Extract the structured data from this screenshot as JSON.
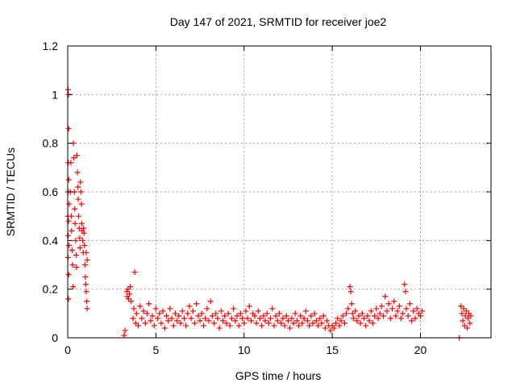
{
  "chart_data": {
    "type": "scatter",
    "title": "Day 147 of 2021, SRMTID for receiver joe2",
    "xlabel": "GPS time / hours",
    "ylabel": "SRMTID / TECUs",
    "xlim": [
      0,
      24
    ],
    "ylim": [
      0,
      1.2
    ],
    "x_ticks": [
      0,
      5,
      10,
      15,
      20
    ],
    "x_tick_labels": [
      "0",
      "5",
      "10",
      "15",
      "20"
    ],
    "y_ticks": [
      0,
      0.2,
      0.4,
      0.6,
      0.8,
      1,
      1.2
    ],
    "y_tick_labels": [
      "0",
      "0.2",
      "0.4",
      "0.6",
      "0.8",
      "1",
      "1.2"
    ],
    "grid": true,
    "marker": "+",
    "color": "#ff0000",
    "series": [
      {
        "name": "SRMTID",
        "points": [
          [
            0.02,
            1.02
          ],
          [
            0.04,
            1.0
          ],
          [
            0.05,
            0.86
          ],
          [
            0.03,
            0.72
          ],
          [
            0.06,
            0.65
          ],
          [
            0.02,
            0.6
          ],
          [
            0.08,
            0.55
          ],
          [
            0.01,
            0.5
          ],
          [
            0.05,
            0.48
          ],
          [
            0.03,
            0.42
          ],
          [
            0.07,
            0.38
          ],
          [
            0.02,
            0.33
          ],
          [
            0.06,
            0.26
          ],
          [
            0.04,
            0.16
          ],
          [
            0.15,
            0.6
          ],
          [
            0.18,
            0.72
          ],
          [
            0.2,
            0.5
          ],
          [
            0.22,
            0.44
          ],
          [
            0.25,
            0.36
          ],
          [
            0.28,
            0.3
          ],
          [
            0.3,
            0.21
          ],
          [
            0.32,
            0.8
          ],
          [
            0.35,
            0.74
          ],
          [
            0.38,
            0.6
          ],
          [
            0.4,
            0.53
          ],
          [
            0.42,
            0.47
          ],
          [
            0.45,
            0.4
          ],
          [
            0.48,
            0.34
          ],
          [
            0.5,
            0.29
          ],
          [
            0.52,
            0.75
          ],
          [
            0.55,
            0.68
          ],
          [
            0.58,
            0.62
          ],
          [
            0.6,
            0.57
          ],
          [
            0.62,
            0.5
          ],
          [
            0.65,
            0.45
          ],
          [
            0.68,
            0.41
          ],
          [
            0.7,
            0.37
          ],
          [
            0.72,
            0.64
          ],
          [
            0.75,
            0.6
          ],
          [
            0.78,
            0.55
          ],
          [
            0.8,
            0.47
          ],
          [
            0.82,
            0.44
          ],
          [
            0.85,
            0.4
          ],
          [
            0.88,
            0.35
          ],
          [
            0.9,
            0.45
          ],
          [
            0.92,
            0.43
          ],
          [
            0.95,
            0.38
          ],
          [
            0.98,
            0.3
          ],
          [
            1.0,
            0.25
          ],
          [
            1.02,
            0.22
          ],
          [
            1.05,
            0.19
          ],
          [
            1.08,
            0.15
          ],
          [
            1.1,
            0.12
          ],
          [
            1.05,
            0.35
          ],
          [
            1.1,
            0.32
          ],
          [
            3.2,
            0.01
          ],
          [
            3.25,
            0.03
          ],
          [
            3.35,
            0.19
          ],
          [
            3.38,
            0.17
          ],
          [
            3.42,
            0.2
          ],
          [
            3.45,
            0.16
          ],
          [
            3.5,
            0.18
          ],
          [
            3.55,
            0.21
          ],
          [
            3.6,
            0.15
          ],
          [
            3.7,
            0.08
          ],
          [
            3.75,
            0.12
          ],
          [
            3.8,
            0.27
          ],
          [
            3.85,
            0.06
          ],
          [
            3.9,
            0.1
          ],
          [
            4.0,
            0.05
          ],
          [
            4.1,
            0.13
          ],
          [
            4.2,
            0.08
          ],
          [
            4.3,
            0.11
          ],
          [
            4.4,
            0.06
          ],
          [
            4.5,
            0.1
          ],
          [
            4.6,
            0.14
          ],
          [
            4.7,
            0.07
          ],
          [
            4.8,
            0.09
          ],
          [
            4.9,
            0.05
          ],
          [
            5.0,
            0.12
          ],
          [
            5.1,
            0.08
          ],
          [
            5.2,
            0.1
          ],
          [
            5.3,
            0.06
          ],
          [
            5.4,
            0.11
          ],
          [
            5.5,
            0.04
          ],
          [
            5.6,
            0.09
          ],
          [
            5.7,
            0.07
          ],
          [
            5.8,
            0.12
          ],
          [
            5.9,
            0.08
          ],
          [
            6.0,
            0.05
          ],
          [
            6.1,
            0.1
          ],
          [
            6.2,
            0.07
          ],
          [
            6.3,
            0.09
          ],
          [
            6.4,
            0.06
          ],
          [
            6.5,
            0.11
          ],
          [
            6.6,
            0.08
          ],
          [
            6.7,
            0.05
          ],
          [
            6.8,
            0.1
          ],
          [
            6.9,
            0.13
          ],
          [
            7.0,
            0.08
          ],
          [
            7.1,
            0.11
          ],
          [
            7.2,
            0.06
          ],
          [
            7.3,
            0.14
          ],
          [
            7.4,
            0.09
          ],
          [
            7.5,
            0.07
          ],
          [
            7.6,
            0.1
          ],
          [
            7.7,
            0.05
          ],
          [
            7.8,
            0.08
          ],
          [
            7.9,
            0.12
          ],
          [
            8.0,
            0.07
          ],
          [
            8.1,
            0.15
          ],
          [
            8.2,
            0.09
          ],
          [
            8.3,
            0.06
          ],
          [
            8.4,
            0.1
          ],
          [
            8.5,
            0.08
          ],
          [
            8.6,
            0.04
          ],
          [
            8.7,
            0.11
          ],
          [
            8.8,
            0.07
          ],
          [
            8.9,
            0.09
          ],
          [
            9.0,
            0.06
          ],
          [
            9.1,
            0.1
          ],
          [
            9.2,
            0.05
          ],
          [
            9.3,
            0.08
          ],
          [
            9.4,
            0.12
          ],
          [
            9.5,
            0.07
          ],
          [
            9.6,
            0.09
          ],
          [
            9.7,
            0.05
          ],
          [
            9.8,
            0.1
          ],
          [
            9.9,
            0.08
          ],
          [
            10.0,
            0.06
          ],
          [
            10.1,
            0.11
          ],
          [
            10.2,
            0.08
          ],
          [
            10.3,
            0.13
          ],
          [
            10.4,
            0.07
          ],
          [
            10.5,
            0.1
          ],
          [
            10.6,
            0.09
          ],
          [
            10.7,
            0.06
          ],
          [
            10.8,
            0.11
          ],
          [
            10.9,
            0.08
          ],
          [
            11.0,
            0.05
          ],
          [
            11.1,
            0.09
          ],
          [
            11.2,
            0.07
          ],
          [
            11.3,
            0.1
          ],
          [
            11.4,
            0.06
          ],
          [
            11.5,
            0.08
          ],
          [
            11.6,
            0.12
          ],
          [
            11.7,
            0.05
          ],
          [
            11.8,
            0.09
          ],
          [
            11.9,
            0.07
          ],
          [
            12.0,
            0.1
          ],
          [
            12.1,
            0.06
          ],
          [
            12.2,
            0.08
          ],
          [
            12.3,
            0.05
          ],
          [
            12.4,
            0.09
          ],
          [
            12.5,
            0.07
          ],
          [
            12.6,
            0.04
          ],
          [
            12.7,
            0.08
          ],
          [
            12.8,
            0.06
          ],
          [
            12.9,
            0.1
          ],
          [
            13.0,
            0.07
          ],
          [
            13.1,
            0.05
          ],
          [
            13.2,
            0.09
          ],
          [
            13.3,
            0.06
          ],
          [
            13.4,
            0.08
          ],
          [
            13.5,
            0.11
          ],
          [
            13.6,
            0.07
          ],
          [
            13.7,
            0.05
          ],
          [
            13.8,
            0.09
          ],
          [
            13.9,
            0.06
          ],
          [
            14.0,
            0.1
          ],
          [
            14.1,
            0.07
          ],
          [
            14.2,
            0.05
          ],
          [
            14.3,
            0.08
          ],
          [
            14.4,
            0.06
          ],
          [
            14.5,
            0.09
          ],
          [
            14.6,
            0.04
          ],
          [
            14.7,
            0.07
          ],
          [
            14.8,
            0.05
          ],
          [
            14.9,
            0.03
          ],
          [
            15.0,
            0.05
          ],
          [
            15.1,
            0.04
          ],
          [
            15.2,
            0.06
          ],
          [
            15.3,
            0.08
          ],
          [
            15.4,
            0.05
          ],
          [
            15.5,
            0.07
          ],
          [
            15.6,
            0.09
          ],
          [
            15.7,
            0.06
          ],
          [
            15.8,
            0.1
          ],
          [
            15.9,
            0.12
          ],
          [
            16.0,
            0.21
          ],
          [
            16.05,
            0.19
          ],
          [
            16.1,
            0.14
          ],
          [
            16.15,
            0.1
          ],
          [
            16.2,
            0.08
          ],
          [
            16.3,
            0.11
          ],
          [
            16.4,
            0.07
          ],
          [
            16.5,
            0.09
          ],
          [
            16.6,
            0.06
          ],
          [
            16.7,
            0.1
          ],
          [
            16.8,
            0.08
          ],
          [
            16.9,
            0.05
          ],
          [
            17.0,
            0.09
          ],
          [
            17.1,
            0.07
          ],
          [
            17.2,
            0.11
          ],
          [
            17.3,
            0.06
          ],
          [
            17.4,
            0.09
          ],
          [
            17.5,
            0.12
          ],
          [
            17.6,
            0.08
          ],
          [
            17.7,
            0.1
          ],
          [
            17.8,
            0.13
          ],
          [
            17.9,
            0.09
          ],
          [
            18.0,
            0.17
          ],
          [
            18.1,
            0.11
          ],
          [
            18.2,
            0.14
          ],
          [
            18.3,
            0.08
          ],
          [
            18.4,
            0.12
          ],
          [
            18.5,
            0.15
          ],
          [
            18.6,
            0.09
          ],
          [
            18.7,
            0.11
          ],
          [
            18.8,
            0.13
          ],
          [
            18.9,
            0.08
          ],
          [
            19.0,
            0.1
          ],
          [
            19.1,
            0.22
          ],
          [
            19.15,
            0.19
          ],
          [
            19.2,
            0.12
          ],
          [
            19.3,
            0.09
          ],
          [
            19.4,
            0.14
          ],
          [
            19.5,
            0.07
          ],
          [
            19.6,
            0.11
          ],
          [
            19.7,
            0.08
          ],
          [
            19.8,
            0.12
          ],
          [
            19.9,
            0.1
          ],
          [
            20.0,
            0.09
          ],
          [
            20.1,
            0.11
          ],
          [
            22.2,
            0.0
          ],
          [
            22.3,
            0.13
          ],
          [
            22.35,
            0.1
          ],
          [
            22.4,
            0.07
          ],
          [
            22.45,
            0.12
          ],
          [
            22.5,
            0.05
          ],
          [
            22.55,
            0.09
          ],
          [
            22.6,
            0.11
          ],
          [
            22.65,
            0.04
          ],
          [
            22.7,
            0.08
          ],
          [
            22.75,
            0.1
          ],
          [
            22.8,
            0.06
          ],
          [
            22.85,
            0.09
          ]
        ]
      }
    ]
  }
}
